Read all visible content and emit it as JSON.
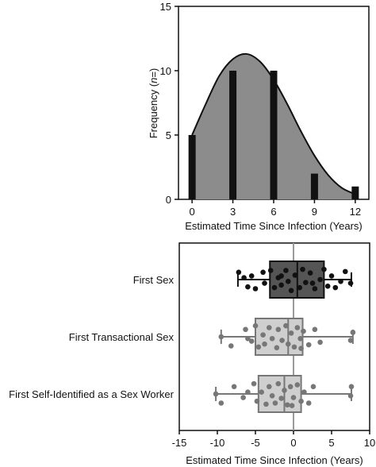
{
  "chart_data": [
    {
      "type": "bar",
      "xlabel": "Estimated Time Since Infection (Years)",
      "ylabel_parts": [
        "Frequency (",
        "n",
        "=)"
      ],
      "xlim": [
        -1,
        13
      ],
      "ylim": [
        0,
        15
      ],
      "x_ticks": [
        0,
        3,
        6,
        9,
        12
      ],
      "y_ticks": [
        0,
        5,
        10,
        15
      ],
      "bars": [
        {
          "x": 0,
          "value": 5
        },
        {
          "x": 3,
          "value": 10
        },
        {
          "x": 6,
          "value": 10
        },
        {
          "x": 9,
          "value": 2
        },
        {
          "x": 12,
          "value": 1
        }
      ],
      "density_curve": {
        "x": [
          0,
          1,
          2,
          3,
          4,
          5,
          6,
          7,
          8,
          9,
          10,
          11,
          12
        ],
        "y": [
          5.0,
          7.4,
          9.6,
          10.9,
          11.3,
          10.7,
          9.3,
          7.4,
          5.3,
          3.4,
          1.9,
          0.9,
          0.4
        ]
      },
      "colors": {
        "bar": "#111111",
        "fill": "#8c8c8c",
        "curve": "#111111"
      }
    },
    {
      "type": "box",
      "xlabel": "Estimated Time Since Infection (Years)",
      "xlim": [
        -15,
        10
      ],
      "x_ticks": [
        -15,
        -10,
        -5,
        0,
        5,
        10
      ],
      "reference_line_x": 0,
      "series": [
        {
          "label": "First Sex",
          "min": -7.3,
          "q1": -3.1,
          "median": 0.5,
          "q3": 4.0,
          "max": 7.6,
          "box_color": "#555555",
          "point_color": "#111111",
          "points": [
            [
              -7.2,
              -0.2
            ],
            [
              -6.5,
              -0.05
            ],
            [
              -6.0,
              0.2
            ],
            [
              -5.5,
              -0.1
            ],
            [
              -5.0,
              0.25
            ],
            [
              -4.0,
              -0.2
            ],
            [
              -3.8,
              0.1
            ],
            [
              -3.0,
              -0.25
            ],
            [
              -2.5,
              0.22
            ],
            [
              -2.0,
              -0.05
            ],
            [
              -1.6,
              0.15
            ],
            [
              -1.0,
              -0.25
            ],
            [
              -0.7,
              0.05
            ],
            [
              -0.3,
              0.3
            ],
            [
              0.2,
              -0.12
            ],
            [
              0.8,
              0.22
            ],
            [
              1.2,
              -0.28
            ],
            [
              1.6,
              0.08
            ],
            [
              2.2,
              -0.18
            ],
            [
              2.8,
              0.25
            ],
            [
              3.5,
              0.0
            ],
            [
              4.0,
              -0.28
            ],
            [
              4.5,
              0.18
            ],
            [
              5.0,
              -0.1
            ],
            [
              5.5,
              0.22
            ],
            [
              6.2,
              0.05
            ],
            [
              6.8,
              -0.22
            ],
            [
              7.5,
              0.1
            ],
            [
              -1.6,
              -0.1
            ],
            [
              2.5,
              0.1
            ]
          ]
        },
        {
          "label": "First Transactional Sex",
          "min": -9.5,
          "q1": -5.0,
          "median": -0.7,
          "q3": 1.2,
          "max": 7.8,
          "box_color": "#cfcfcf",
          "point_color": "#777777",
          "points": [
            [
              -9.5,
              0.0
            ],
            [
              -8.2,
              0.25
            ],
            [
              -6.3,
              -0.2
            ],
            [
              -5.5,
              0.12
            ],
            [
              -5.0,
              -0.3
            ],
            [
              -4.6,
              0.28
            ],
            [
              -4.0,
              -0.05
            ],
            [
              -3.8,
              0.2
            ],
            [
              -3.2,
              -0.25
            ],
            [
              -2.8,
              0.05
            ],
            [
              -2.2,
              0.3
            ],
            [
              -2.0,
              -0.2
            ],
            [
              -1.5,
              0.1
            ],
            [
              -1.0,
              -0.3
            ],
            [
              -0.7,
              0.2
            ],
            [
              -0.3,
              -0.1
            ],
            [
              0.1,
              0.28
            ],
            [
              0.5,
              -0.25
            ],
            [
              0.9,
              0.05
            ],
            [
              1.3,
              -0.15
            ],
            [
              2.0,
              0.22
            ],
            [
              2.8,
              -0.2
            ],
            [
              3.5,
              0.15
            ],
            [
              7.5,
              0.1
            ],
            [
              7.8,
              -0.12
            ],
            [
              -6.0,
              0.05
            ],
            [
              1.0,
              0.32
            ]
          ]
        },
        {
          "label": "First Self-Identified as a Sex Worker",
          "min": -10.2,
          "q1": -4.6,
          "median": -1.2,
          "q3": 1.0,
          "max": 7.6,
          "box_color": "#cfcfcf",
          "point_color": "#777777",
          "points": [
            [
              -10.2,
              0.0
            ],
            [
              -9.5,
              0.25
            ],
            [
              -7.8,
              -0.2
            ],
            [
              -6.6,
              0.1
            ],
            [
              -5.2,
              -0.28
            ],
            [
              -4.8,
              0.2
            ],
            [
              -4.2,
              -0.05
            ],
            [
              -3.6,
              0.28
            ],
            [
              -3.2,
              -0.2
            ],
            [
              -2.8,
              0.05
            ],
            [
              -2.4,
              0.25
            ],
            [
              -2.0,
              -0.28
            ],
            [
              -1.6,
              0.12
            ],
            [
              -1.2,
              -0.1
            ],
            [
              -0.8,
              0.3
            ],
            [
              -0.4,
              -0.2
            ],
            [
              0.0,
              0.1
            ],
            [
              0.5,
              -0.25
            ],
            [
              1.0,
              0.2
            ],
            [
              1.4,
              -0.05
            ],
            [
              2.0,
              0.25
            ],
            [
              2.6,
              -0.2
            ],
            [
              7.5,
              0.05
            ],
            [
              7.6,
              -0.2
            ],
            [
              -6.0,
              -0.05
            ],
            [
              -0.2,
              0.32
            ]
          ]
        }
      ]
    }
  ]
}
